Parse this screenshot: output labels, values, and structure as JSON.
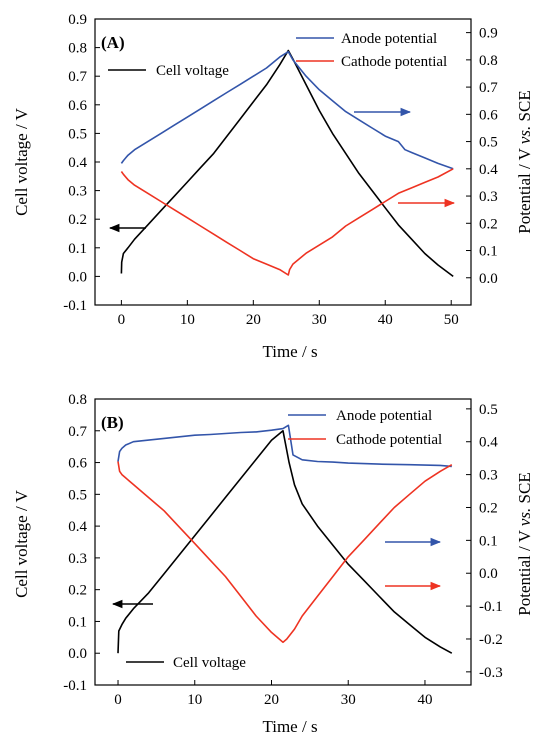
{
  "chart_data": [
    {
      "type": "line",
      "panel_label": "(A)",
      "xlabel": "Time / s",
      "ylabel_left": "Cell voltage / V",
      "ylabel_right_parts": [
        "Potential / V ",
        "vs.",
        " SCE"
      ],
      "xlim": [
        -4,
        53
      ],
      "ylim_left": [
        -0.1,
        0.9
      ],
      "ylim_right": [
        -0.1,
        0.95
      ],
      "x_ticks": [
        "0",
        "10",
        "20",
        "30",
        "40",
        "50"
      ],
      "y_left_ticks": [
        "-0.1",
        "0.0",
        "0.1",
        "0.2",
        "0.3",
        "0.4",
        "0.5",
        "0.6",
        "0.7",
        "0.8",
        "0.9"
      ],
      "y_right_ticks": [
        "0.0",
        "0.1",
        "0.2",
        "0.3",
        "0.4",
        "0.5",
        "0.6",
        "0.7",
        "0.8",
        "0.9"
      ],
      "series": [
        {
          "name": "Cell voltage",
          "axis": "left",
          "color": "#000000",
          "x": [
            0.0,
            0.05,
            0.3,
            1,
            2,
            4,
            6,
            8,
            10,
            12,
            14,
            16,
            18,
            20,
            22,
            24,
            25.3,
            26,
            28,
            30,
            32,
            34,
            36,
            38,
            40,
            42,
            44,
            46,
            48,
            50.3
          ],
          "y": [
            0.01,
            0.05,
            0.08,
            0.1,
            0.13,
            0.18,
            0.23,
            0.28,
            0.33,
            0.38,
            0.43,
            0.49,
            0.55,
            0.61,
            0.67,
            0.74,
            0.79,
            0.76,
            0.67,
            0.58,
            0.5,
            0.43,
            0.36,
            0.3,
            0.24,
            0.18,
            0.13,
            0.08,
            0.04,
            0.0
          ]
        },
        {
          "name": "Anode potential",
          "axis": "right",
          "color": "#3355aa",
          "x": [
            0.0,
            0.3,
            1,
            2,
            4,
            6,
            8,
            10,
            12,
            14,
            16,
            18,
            20,
            22,
            24,
            25.3,
            26,
            28,
            30,
            32,
            34,
            36,
            38,
            40,
            42,
            43,
            44,
            46,
            48,
            50.3
          ],
          "y": [
            0.42,
            0.43,
            0.45,
            0.47,
            0.5,
            0.53,
            0.56,
            0.59,
            0.62,
            0.65,
            0.68,
            0.71,
            0.74,
            0.77,
            0.81,
            0.83,
            0.8,
            0.74,
            0.69,
            0.65,
            0.61,
            0.58,
            0.55,
            0.52,
            0.5,
            0.47,
            0.46,
            0.44,
            0.42,
            0.4
          ]
        },
        {
          "name": "Cathode potential",
          "axis": "right",
          "color": "#ee3322",
          "x": [
            0.0,
            0.3,
            1,
            2,
            4,
            6,
            8,
            10,
            12,
            14,
            16,
            18,
            20,
            22,
            24,
            25.3,
            25.5,
            26,
            28,
            30,
            32,
            34,
            36,
            38,
            40,
            42,
            44,
            46,
            48,
            50.3
          ],
          "y": [
            0.39,
            0.38,
            0.36,
            0.34,
            0.31,
            0.28,
            0.25,
            0.22,
            0.19,
            0.16,
            0.13,
            0.1,
            0.07,
            0.05,
            0.03,
            0.01,
            0.03,
            0.05,
            0.09,
            0.12,
            0.15,
            0.19,
            0.22,
            0.25,
            0.28,
            0.31,
            0.33,
            0.35,
            0.37,
            0.4
          ]
        }
      ],
      "legend": [
        "Anode potential",
        "Cathode potential"
      ],
      "inline_label": "Cell voltage"
    },
    {
      "type": "line",
      "panel_label": "(B)",
      "xlabel": "Time / s",
      "ylabel_left": "Cell voltage / V",
      "ylabel_right_parts": [
        "Potential / V ",
        "vs.",
        " SCE"
      ],
      "xlim": [
        -3,
        46
      ],
      "ylim_left": [
        -0.1,
        0.8
      ],
      "ylim_right": [
        -0.34,
        0.53
      ],
      "x_ticks": [
        "0",
        "10",
        "20",
        "30",
        "40"
      ],
      "y_left_ticks": [
        "-0.1",
        "0.0",
        "0.1",
        "0.2",
        "0.3",
        "0.4",
        "0.5",
        "0.6",
        "0.7",
        "0.8"
      ],
      "y_right_ticks": [
        "-0.3",
        "-0.2",
        "-0.1",
        "0.0",
        "0.1",
        "0.2",
        "0.3",
        "0.4",
        "0.5"
      ],
      "series": [
        {
          "name": "Cell voltage",
          "axis": "left",
          "color": "#000000",
          "x": [
            0.0,
            0.1,
            0.5,
            1,
            2,
            4,
            6,
            8,
            10,
            12,
            14,
            16,
            18,
            20,
            21.5,
            22.3,
            23,
            24,
            26,
            28,
            30,
            32,
            34,
            36,
            38,
            40,
            42,
            43.5
          ],
          "y": [
            0.0,
            0.07,
            0.09,
            0.11,
            0.14,
            0.19,
            0.25,
            0.31,
            0.37,
            0.43,
            0.49,
            0.55,
            0.61,
            0.67,
            0.7,
            0.6,
            0.53,
            0.47,
            0.4,
            0.34,
            0.28,
            0.23,
            0.18,
            0.13,
            0.09,
            0.05,
            0.02,
            0.0
          ]
        },
        {
          "name": "Anode potential",
          "axis": "right",
          "color": "#3355aa",
          "x": [
            0.0,
            0.2,
            0.5,
            1,
            2,
            4,
            6,
            8,
            10,
            12,
            14,
            16,
            18,
            20,
            21.5,
            22.2,
            22.8,
            24,
            26,
            28,
            30,
            34,
            38,
            42,
            43.5
          ],
          "y": [
            0.34,
            0.37,
            0.38,
            0.39,
            0.4,
            0.405,
            0.41,
            0.415,
            0.42,
            0.422,
            0.425,
            0.428,
            0.43,
            0.435,
            0.44,
            0.45,
            0.36,
            0.345,
            0.34,
            0.338,
            0.335,
            0.332,
            0.33,
            0.328,
            0.325
          ]
        },
        {
          "name": "Cathode potential",
          "axis": "right",
          "color": "#ee3322",
          "x": [
            0.0,
            0.2,
            0.5,
            1,
            2,
            4,
            6,
            8,
            10,
            12,
            14,
            16,
            18,
            20,
            21,
            21.5,
            22,
            23,
            24,
            26,
            28,
            30,
            32,
            34,
            36,
            38,
            40,
            42,
            43.5
          ],
          "y": [
            0.34,
            0.31,
            0.3,
            0.29,
            0.27,
            0.23,
            0.19,
            0.14,
            0.09,
            0.04,
            -0.01,
            -0.07,
            -0.13,
            -0.18,
            -0.2,
            -0.21,
            -0.2,
            -0.17,
            -0.13,
            -0.07,
            -0.01,
            0.05,
            0.1,
            0.15,
            0.2,
            0.24,
            0.28,
            0.31,
            0.33
          ]
        }
      ],
      "legend": [
        "Anode potential",
        "Cathode potential"
      ],
      "inline_label": "Cell voltage"
    }
  ]
}
